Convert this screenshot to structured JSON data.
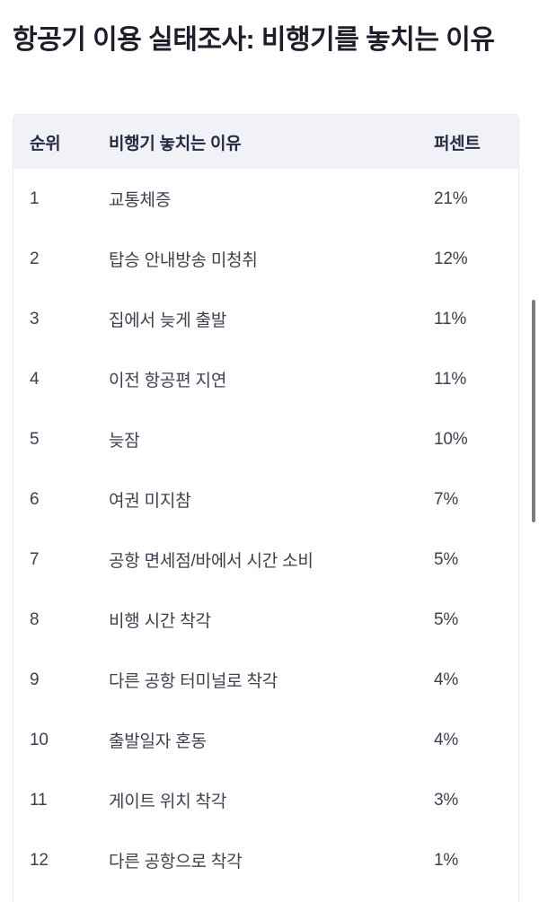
{
  "title": "항공기 이용 실태조사: 비행기를 놓치는 이유",
  "table": {
    "headers": {
      "rank": "순위",
      "reason": "비행기 놓치는 이유",
      "percent": "퍼센트"
    },
    "rows": [
      {
        "rank": "1",
        "reason": "교통체증",
        "percent": "21%"
      },
      {
        "rank": "2",
        "reason": "탑승 안내방송 미청취",
        "percent": "12%"
      },
      {
        "rank": "3",
        "reason": "집에서 늦게 출발",
        "percent": "11%"
      },
      {
        "rank": "4",
        "reason": "이전 항공편 지연",
        "percent": "11%"
      },
      {
        "rank": "5",
        "reason": "늦잠",
        "percent": "10%"
      },
      {
        "rank": "6",
        "reason": "여권 미지참",
        "percent": "7%"
      },
      {
        "rank": "7",
        "reason": "공항 면세점/바에서 시간 소비",
        "percent": "5%"
      },
      {
        "rank": "8",
        "reason": "비행 시간 착각",
        "percent": "5%"
      },
      {
        "rank": "9",
        "reason": "다른 공항 터미널로 착각",
        "percent": "4%"
      },
      {
        "rank": "10",
        "reason": "출발일자 혼동",
        "percent": "4%"
      },
      {
        "rank": "11",
        "reason": "게이트 위치 착각",
        "percent": "3%"
      },
      {
        "rank": "12",
        "reason": "다른 공항으로 착각",
        "percent": "1%"
      }
    ]
  },
  "chart_data": {
    "type": "table",
    "title": "항공기 이용 실태조사: 비행기를 놓치는 이유",
    "columns": [
      "순위",
      "비행기 놓치는 이유",
      "퍼센트"
    ],
    "categories": [
      "교통체증",
      "탑승 안내방송 미청취",
      "집에서 늦게 출발",
      "이전 항공편 지연",
      "늦잠",
      "여권 미지참",
      "공항 면세점/바에서 시간 소비",
      "비행 시간 착각",
      "다른 공항 터미널로 착각",
      "출발일자 혼동",
      "게이트 위치 착각",
      "다른 공항으로 착각"
    ],
    "values": [
      21,
      12,
      11,
      11,
      10,
      7,
      5,
      5,
      4,
      4,
      3,
      1
    ],
    "unit": "%"
  },
  "colors": {
    "title_text": "#1d1e2c",
    "header_bg": "#f1f2f8",
    "header_text": "#262b42",
    "body_text": "#3b4150",
    "table_border": "#e9eaf0",
    "scrollbar": "#7d7d7d"
  }
}
